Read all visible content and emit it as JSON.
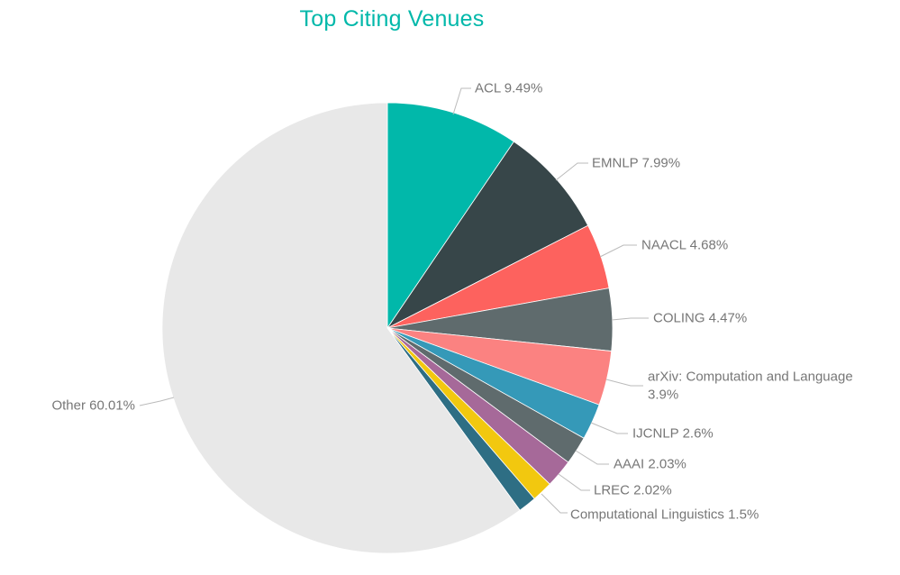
{
  "page": {
    "background": "#FFFFFF"
  },
  "chart_data": {
    "type": "pie",
    "title": "Top Citing Venues",
    "title_color": "#01B8AA",
    "label_color": "#777777",
    "leader_line_color": "#BBBBBB",
    "start_angle": "12-oclock",
    "direction": "clockwise",
    "legend_position": "none",
    "labels_style": "outside-with-leader-lines",
    "slices": [
      {
        "label": "ACL",
        "value": 9.49,
        "display": "ACL 9.49%",
        "color": "#01B8AA"
      },
      {
        "label": "EMNLP",
        "value": 7.99,
        "display": "EMNLP 7.99%",
        "color": "#374649"
      },
      {
        "label": "NAACL",
        "value": 4.68,
        "display": "NAACL 4.68%",
        "color": "#FD625E"
      },
      {
        "label": "COLING",
        "value": 4.47,
        "display": "COLING 4.47%",
        "color": "#5F6B6D"
      },
      {
        "label": "arXiv: Computation and Language",
        "value": 3.9,
        "display": "arXiv: Computation and Language 3.9%",
        "display_line1": "arXiv: Computation and Language",
        "display_line2": "3.9%",
        "color": "#FB8281"
      },
      {
        "label": "IJCNLP",
        "value": 2.6,
        "display": "IJCNLP 2.6%",
        "color": "#3599B8"
      },
      {
        "label": "AAAI",
        "value": 2.03,
        "display": "AAAI 2.03%",
        "color": "#5F6B6D"
      },
      {
        "label": "LREC",
        "value": 2.02,
        "display": "LREC 2.02%",
        "color": "#A66999"
      },
      {
        "label": "Computational Linguistics",
        "value": 1.5,
        "display": "Computational Linguistics 1.5%",
        "color": "#F2C80F"
      },
      {
        "label": "",
        "value": 1.31,
        "display": "",
        "color": "#2E6E84",
        "unlabeled": true,
        "value_estimated_from_remainder": true
      },
      {
        "label": "Other",
        "value": 60.01,
        "display": "Other 60.01%",
        "color": "#E8E8E8"
      }
    ]
  }
}
